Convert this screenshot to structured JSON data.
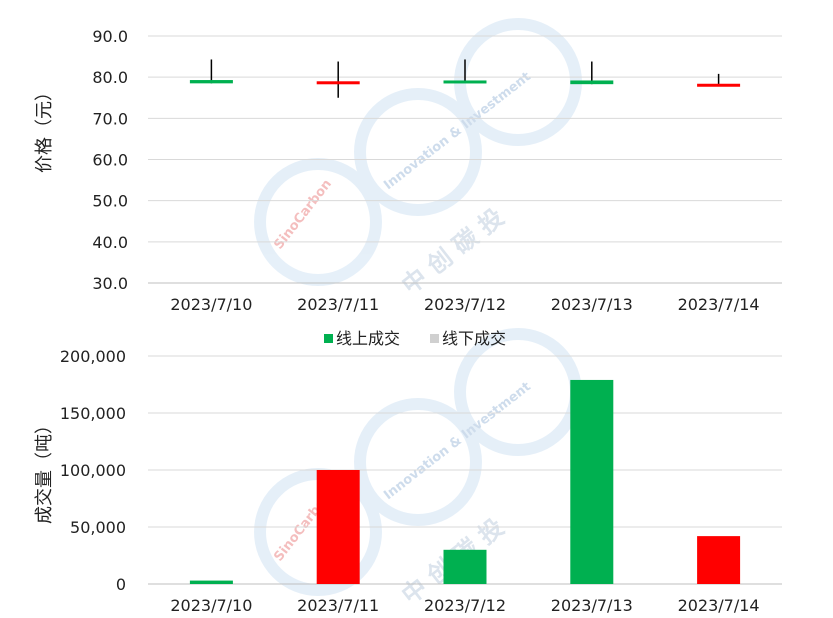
{
  "colors": {
    "up": "#00b050",
    "down": "#ff0000",
    "wick": "#000000",
    "offline": "#d0d0d0",
    "grid": "#d9d9d9",
    "watermark": "#e3eef8"
  },
  "watermark": {
    "brand": "SinoCarbon",
    "tagline": "Innovation & Investment",
    "chinese": "中 创 碳 投"
  },
  "chart_data": [
    {
      "type": "candlestick",
      "ylabel": "价格（元）",
      "ylim": [
        30,
        90
      ],
      "yticks": [
        "90.0",
        "80.0",
        "70.0",
        "60.0",
        "50.0",
        "40.0",
        "30.0"
      ],
      "ytick_values": [
        90,
        80,
        70,
        60,
        50,
        40,
        30
      ],
      "categories": [
        "2023/7/10",
        "2023/7/11",
        "2023/7/12",
        "2023/7/13",
        "2023/7/14"
      ],
      "candles": [
        {
          "date": "2023/7/10",
          "open": 78.5,
          "close": 79.3,
          "high": 84.3,
          "low": 78.5,
          "dir": "up"
        },
        {
          "date": "2023/7/11",
          "open": 79.0,
          "close": 78.3,
          "high": 83.8,
          "low": 75.0,
          "dir": "down"
        },
        {
          "date": "2023/7/12",
          "open": 78.8,
          "close": 79.2,
          "high": 84.3,
          "low": 78.8,
          "dir": "up"
        },
        {
          "date": "2023/7/13",
          "open": 78.3,
          "close": 79.2,
          "high": 83.8,
          "low": 78.3,
          "dir": "up"
        },
        {
          "date": "2023/7/14",
          "open": 78.4,
          "close": 78.0,
          "high": 80.8,
          "low": 78.0,
          "dir": "down"
        }
      ],
      "grid": true
    },
    {
      "type": "bar",
      "ylabel": "成交量（吨）",
      "ylim": [
        0,
        200000
      ],
      "yticks": [
        "200,000",
        "150,000",
        "100,000",
        "50,000",
        "0"
      ],
      "ytick_values": [
        200000,
        150000,
        100000,
        50000,
        0
      ],
      "categories": [
        "2023/7/10",
        "2023/7/11",
        "2023/7/12",
        "2023/7/13",
        "2023/7/14"
      ],
      "values": [
        3000,
        100000,
        30000,
        179000,
        42000
      ],
      "bar_dirs": [
        "up",
        "down",
        "up",
        "up",
        "down"
      ],
      "legend": [
        "线上成交",
        "线下成交"
      ],
      "legend_position": "top",
      "grid": true
    }
  ]
}
